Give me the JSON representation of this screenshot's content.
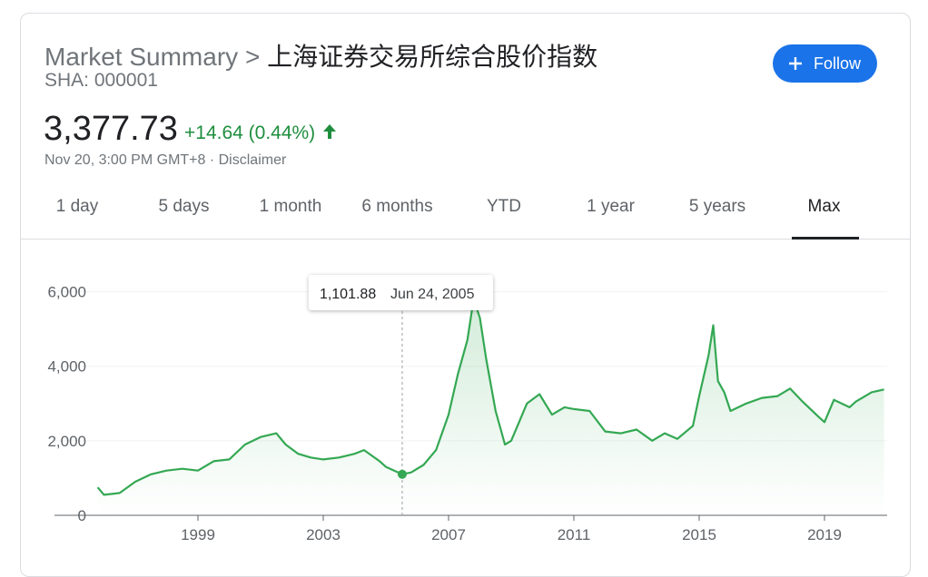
{
  "header": {
    "breadcrumb": "Market Summary",
    "separator": ">",
    "name": "上海证券交易所综合股价指数",
    "ticker": "SHA: 000001",
    "price": "3,377.73",
    "change": "+14.64 (0.44%)",
    "timestamp": "Nov 20, 3:00 PM GMT+8 · Disclaimer",
    "follow": "Follow"
  },
  "tabs": [
    {
      "label": "1 day",
      "selected": false
    },
    {
      "label": "5 days",
      "selected": false
    },
    {
      "label": "1 month",
      "selected": false
    },
    {
      "label": "6 months",
      "selected": false
    },
    {
      "label": "YTD",
      "selected": false
    },
    {
      "label": "1 year",
      "selected": false
    },
    {
      "label": "5 years",
      "selected": false
    },
    {
      "label": "Max",
      "selected": true
    }
  ],
  "chart_data": {
    "type": "line",
    "color": "#34a853",
    "grid": true,
    "x": [
      1995.8,
      1996.0,
      1996.5,
      1997.0,
      1997.5,
      1998.0,
      1998.5,
      1999.0,
      1999.5,
      2000.0,
      2000.5,
      2001.0,
      2001.5,
      2001.8,
      2002.2,
      2002.6,
      2003.0,
      2003.5,
      2004.0,
      2004.3,
      2004.8,
      2005.0,
      2005.52,
      2005.8,
      2006.2,
      2006.6,
      2007.0,
      2007.3,
      2007.6,
      2007.8,
      2008.0,
      2008.2,
      2008.5,
      2008.8,
      2009.0,
      2009.5,
      2009.9,
      2010.3,
      2010.7,
      2011.0,
      2011.5,
      2012.0,
      2012.5,
      2013.0,
      2013.5,
      2013.9,
      2014.3,
      2014.8,
      2015.0,
      2015.3,
      2015.45,
      2015.6,
      2015.8,
      2016.0,
      2016.5,
      2017.0,
      2017.5,
      2017.9,
      2018.3,
      2018.8,
      2019.0,
      2019.3,
      2019.8,
      2020.0,
      2020.5,
      2020.9
    ],
    "series": [
      {
        "values": [
          750,
          550,
          600,
          900,
          1100,
          1200,
          1250,
          1200,
          1450,
          1500,
          1900,
          2100,
          2200,
          1900,
          1650,
          1550,
          1500,
          1550,
          1650,
          1750,
          1450,
          1300,
          1101.88,
          1150,
          1350,
          1750,
          2700,
          3800,
          4700,
          5800,
          5300,
          4200,
          2800,
          1900,
          2000,
          3000,
          3250,
          2700,
          2900,
          2850,
          2800,
          2250,
          2200,
          2300,
          2000,
          2200,
          2050,
          2400,
          3200,
          4300,
          5100,
          3600,
          3300,
          2800,
          3000,
          3150,
          3200,
          3400,
          3050,
          2650,
          2500,
          3100,
          2900,
          3050,
          3300,
          3377.73
        ]
      }
    ],
    "xlim": [
      1994.42,
      2021.0
    ],
    "xticks": [
      1999,
      2003,
      2007,
      2011,
      2015,
      2019
    ],
    "ylim": [
      0,
      6500
    ],
    "yticks": [
      0,
      {
        "value": 2000,
        "label": "2,000"
      },
      {
        "value": 4000,
        "label": "4,000"
      },
      {
        "value": 6000,
        "label": "6,000"
      }
    ],
    "tooltip": {
      "x": 2005.52,
      "value": 1101.88,
      "value_label": "1,101.88",
      "date_label": "Jun 24, 2005"
    }
  }
}
